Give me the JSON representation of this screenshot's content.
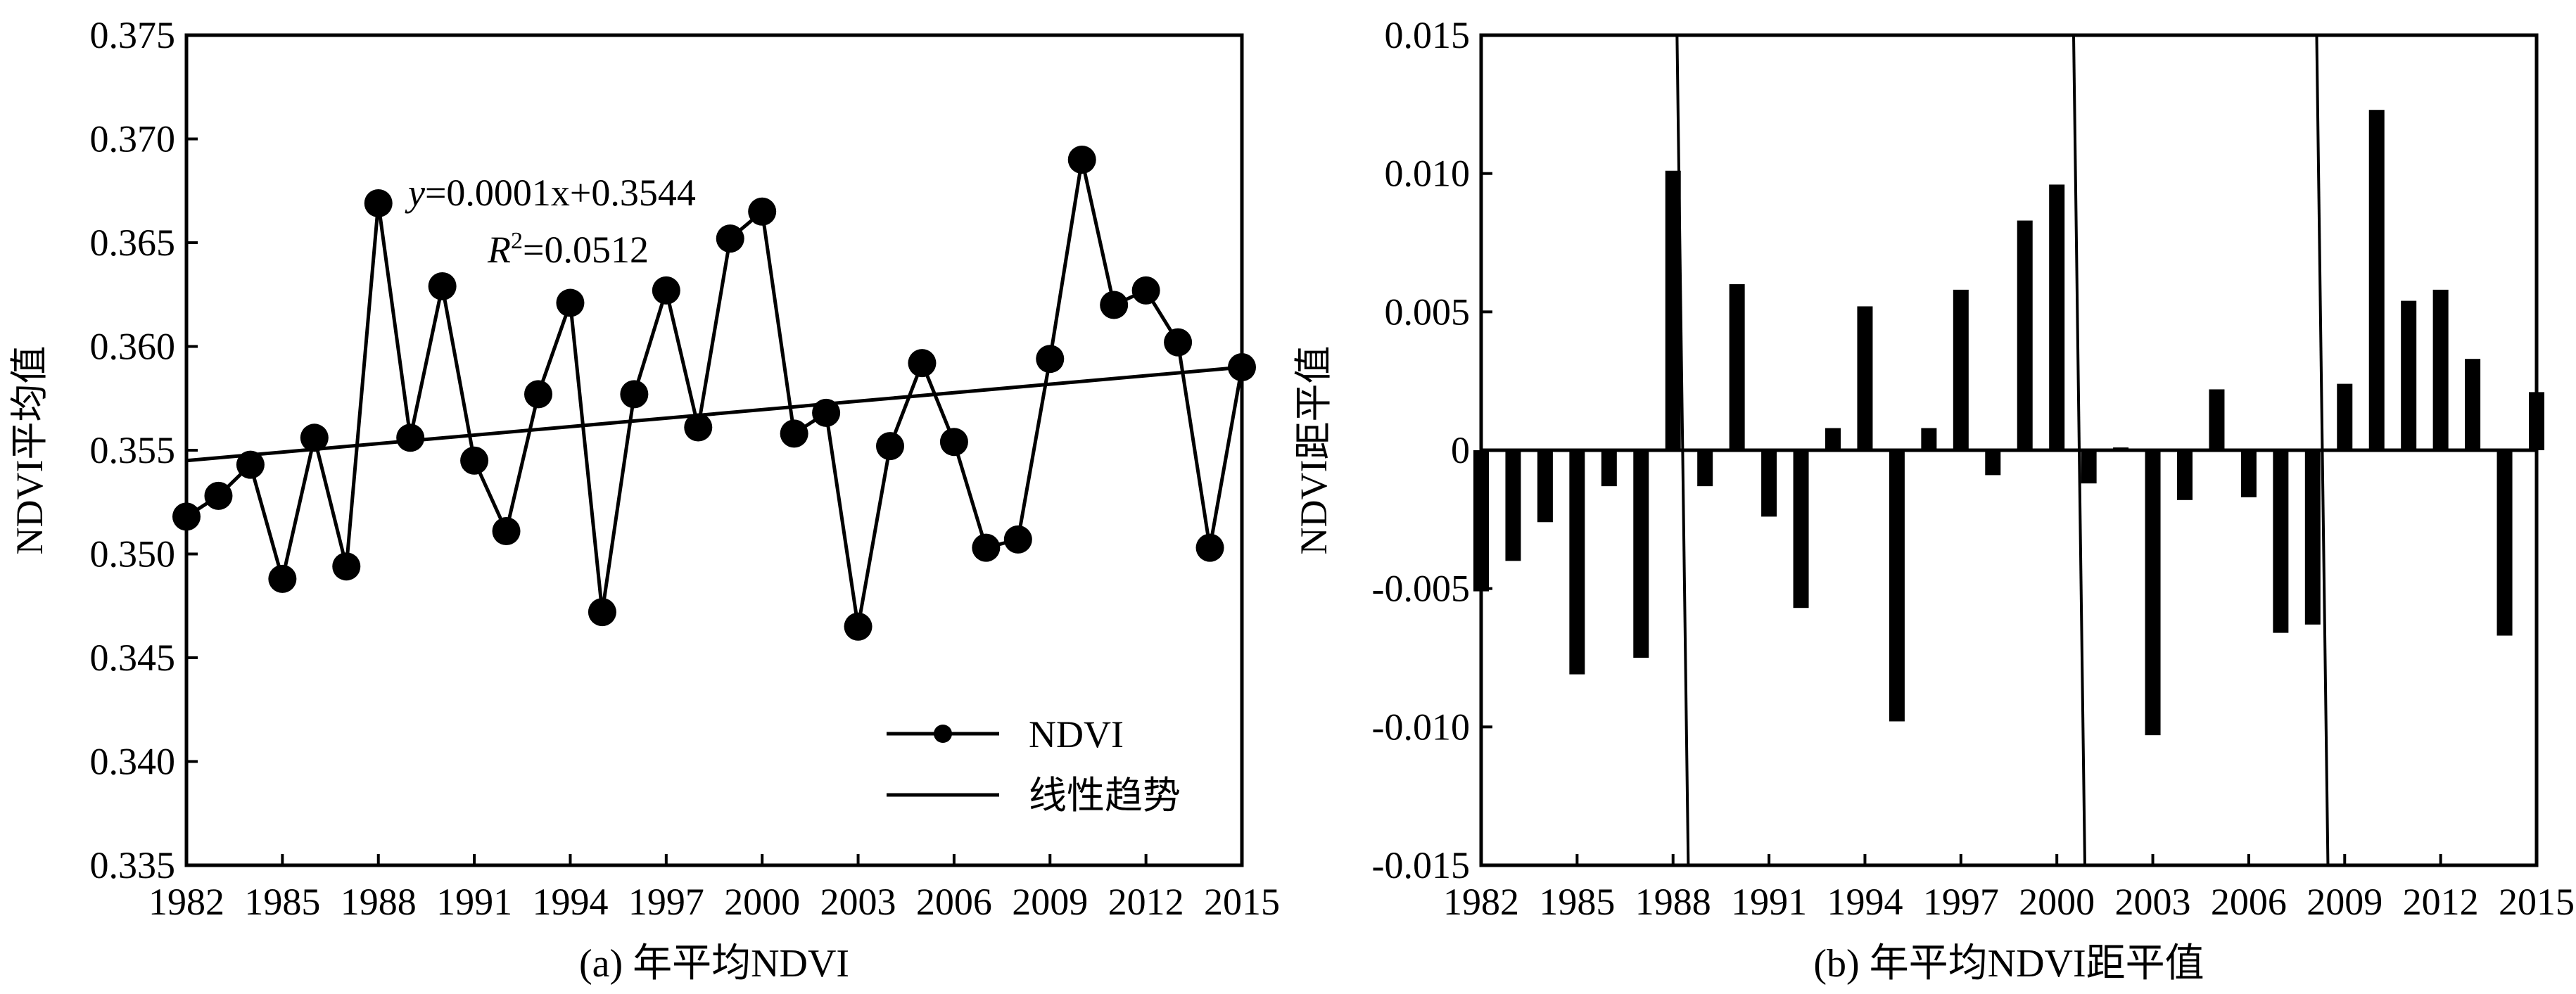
{
  "chart_data": [
    {
      "type": "line",
      "caption": "(a) 年平均NDVI",
      "xlabel": "",
      "ylabel": "NDVI平均值",
      "xlim": [
        1982,
        2015
      ],
      "ylim": [
        0.335,
        0.375
      ],
      "x_ticks": [
        "1982",
        "1985",
        "1988",
        "1991",
        "1994",
        "1997",
        "2000",
        "2003",
        "2006",
        "2009",
        "2012",
        "2015"
      ],
      "y_ticks": [
        "0.335",
        "0.340",
        "0.345",
        "0.350",
        "0.355",
        "0.360",
        "0.365",
        "0.370",
        "0.375"
      ],
      "series": [
        {
          "name": "NDVI",
          "x": [
            1982,
            1983,
            1984,
            1985,
            1986,
            1987,
            1988,
            1989,
            1990,
            1991,
            1992,
            1993,
            1994,
            1995,
            1996,
            1997,
            1998,
            1999,
            2000,
            2001,
            2002,
            2003,
            2004,
            2005,
            2006,
            2007,
            2008,
            2009,
            2010,
            2011,
            2012,
            2013,
            2014,
            2015
          ],
          "values": [
            0.3518,
            0.3528,
            0.3543,
            0.3488,
            0.3556,
            0.3494,
            0.3669,
            0.3556,
            0.3629,
            0.3545,
            0.3511,
            0.3577,
            0.3621,
            0.3472,
            0.3577,
            0.3627,
            0.3561,
            0.3652,
            0.3665,
            0.3558,
            0.3568,
            0.3465,
            0.3552,
            0.3592,
            0.3554,
            0.3503,
            0.3507,
            0.3594,
            0.369,
            0.362,
            0.3627,
            0.3602,
            0.3503,
            0.359
          ]
        },
        {
          "name": "线性趋势",
          "x": [
            1982,
            2015
          ],
          "values": [
            0.3545,
            0.359
          ]
        }
      ],
      "equation_y": "y",
      "equation_rest": "=0.0001x+0.3544",
      "equation_r": "R",
      "equation_r_sup": "2",
      "equation_r_rest": "=0.0512",
      "legend": [
        "NDVI",
        "线性趋势"
      ],
      "legend_position": "bottom-right"
    },
    {
      "type": "bar",
      "caption": "(b) 年平均NDVI距平值",
      "xlabel": "",
      "ylabel": "NDVI距平值",
      "xlim": [
        1982,
        2015
      ],
      "ylim": [
        -0.015,
        0.015
      ],
      "x_ticks": [
        "1982",
        "1985",
        "1988",
        "1991",
        "1994",
        "1997",
        "2000",
        "2003",
        "2006",
        "2009",
        "2012",
        "2015"
      ],
      "y_ticks": [
        "-0.015",
        "-0.010",
        "-0.005",
        "0",
        "0.005",
        "0.010",
        "0.015"
      ],
      "x": [
        1982,
        1983,
        1984,
        1985,
        1986,
        1987,
        1988,
        1989,
        1990,
        1991,
        1992,
        1993,
        1994,
        1995,
        1996,
        1997,
        1998,
        1999,
        2000,
        2001,
        2002,
        2003,
        2004,
        2005,
        2006,
        2007,
        2008,
        2009,
        2010,
        2011,
        2012,
        2013,
        2014,
        2015
      ],
      "values": [
        -0.0051,
        -0.004,
        -0.0026,
        -0.0081,
        -0.0013,
        -0.0075,
        0.0101,
        -0.0013,
        0.006,
        -0.0024,
        -0.0057,
        0.0008,
        0.0052,
        -0.0098,
        0.0008,
        0.0058,
        -0.0009,
        0.0083,
        0.0096,
        -0.0012,
        0.0001,
        -0.0103,
        -0.0018,
        0.0022,
        -0.0017,
        -0.0066,
        -0.0063,
        0.0024,
        0.0123,
        0.0054,
        0.0058,
        0.0033,
        -0.0067,
        0.0021
      ],
      "period_dividers": [
        1988.3,
        2000.7,
        2008.3
      ]
    }
  ]
}
